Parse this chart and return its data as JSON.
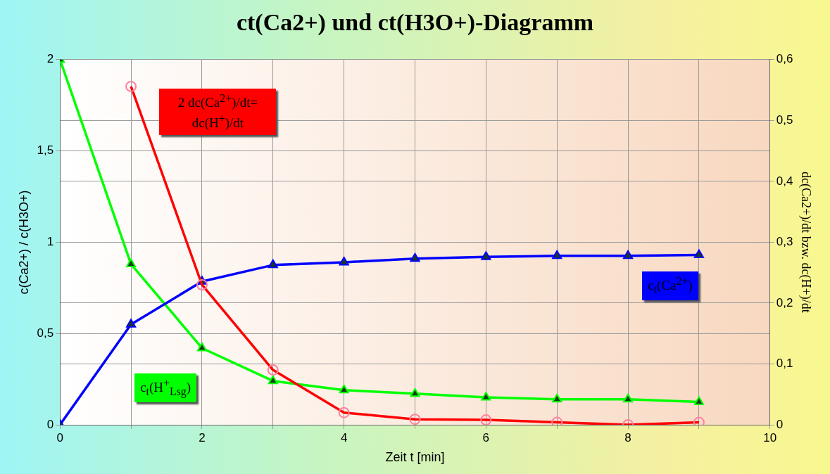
{
  "chart_data": {
    "type": "line",
    "title": "ct(Ca2+) und ct(H3O+)-Diagramm",
    "xlabel": "Zeit t [min]",
    "ylabel": "c(Ca2+) / c(H3O+)",
    "y2label": "dc(Ca2+)/dt bzw. dc(H+)/dt",
    "x": [
      0,
      1,
      2,
      3,
      4,
      5,
      6,
      7,
      8,
      9
    ],
    "series": [
      {
        "name": "2 dc(Ca$^{2+}$)/dt= dc(H$^{+}$)/dt",
        "color": "#ff0000",
        "axis": "y2",
        "marker": "circle",
        "values": [
          null,
          0.556,
          0.23,
          0.09,
          0.02,
          0.009,
          0.008,
          0.004,
          0,
          0.004
        ]
      },
      {
        "name": "c$_{t}$(Ca$^{2+}$)",
        "color": "#0000ff",
        "axis": "y",
        "marker": "triangle",
        "values": [
          0,
          0.55,
          0.785,
          0.875,
          0.89,
          0.91,
          0.92,
          0.925,
          0.925,
          0.93
        ]
      },
      {
        "name": "c$_{t}$(H$^{+}$$_{Lsg}$)",
        "color": "#00ff00",
        "axis": "y",
        "marker": "triangle",
        "values": [
          2,
          0.88,
          0.42,
          0.24,
          0.19,
          0.17,
          0.15,
          0.14,
          0.14,
          0.125
        ]
      }
    ],
    "xlim": [
      0,
      10
    ],
    "xticks": [
      0,
      {
        "value": 1,
        "label": null
      },
      2,
      {
        "value": 3,
        "label": null
      },
      4,
      {
        "value": 5,
        "label": null
      },
      6,
      {
        "value": 7,
        "label": null
      },
      8,
      {
        "value": 9,
        "label": null
      },
      10
    ],
    "ylim": [
      0,
      2
    ],
    "yticks": [
      0,
      {
        "value": 0.5,
        "label": "0,5"
      },
      1,
      {
        "value": 1.5,
        "label": "1,5"
      },
      2
    ],
    "y2lim": [
      0,
      0.6
    ],
    "y2ticks": [
      0,
      {
        "value": 0.1,
        "label": "0,1"
      },
      {
        "value": 0.2,
        "label": "0,2"
      },
      {
        "value": 0.3,
        "label": "0,3"
      },
      {
        "value": 0.4,
        "label": "0,4"
      },
      {
        "value": 0.5,
        "label": "0,5"
      },
      {
        "value": 0.6,
        "label": "0,6"
      }
    ],
    "grid": true,
    "legend": false,
    "line_style": "solid"
  }
}
